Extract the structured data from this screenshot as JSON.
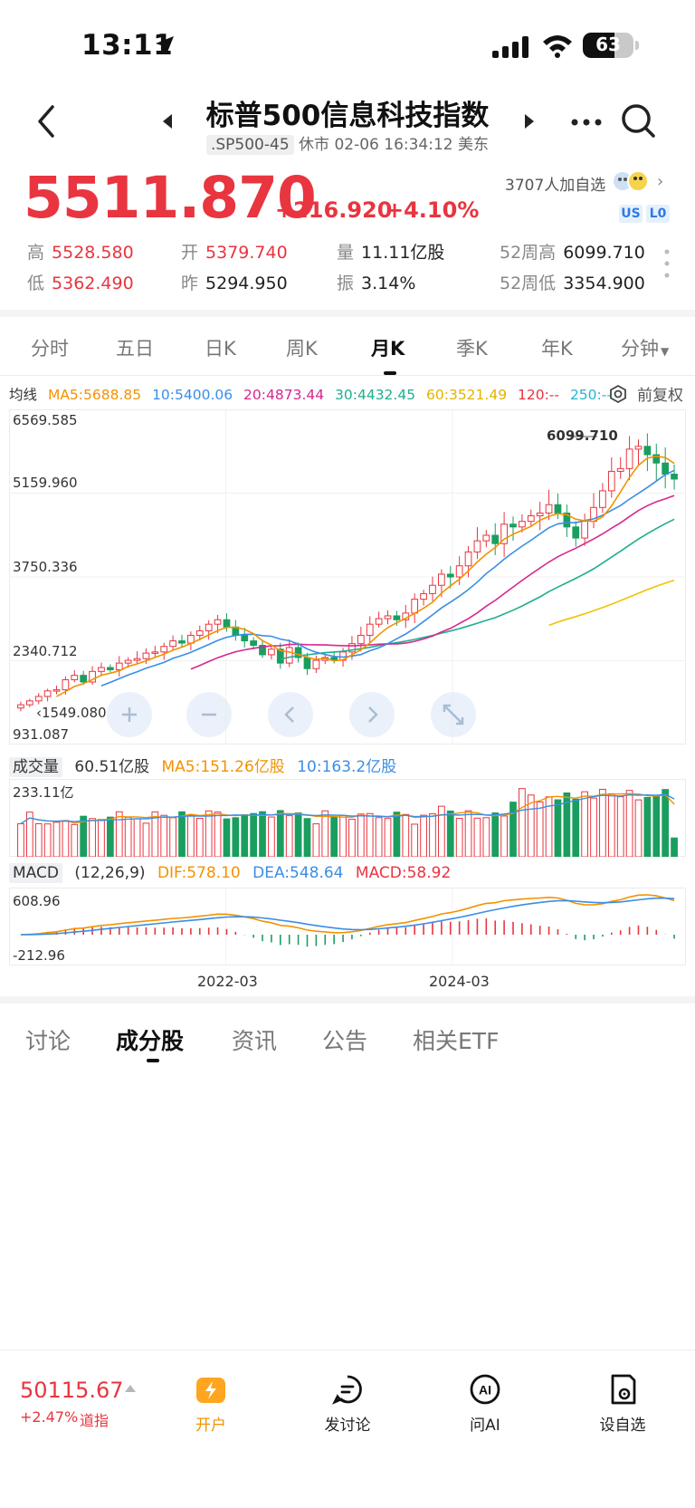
{
  "status_bar": {
    "time": "13:11",
    "battery": "63",
    "battery_level": 0.63
  },
  "header": {
    "title": "标普500信息科技指数",
    "code": ".SP500-45",
    "status": "休市 02-06 16:34:12 美东"
  },
  "quote": {
    "price": "5511.870",
    "change": "+216.920",
    "change_pct": "+4.10%",
    "watchers": "3707人加自选",
    "badge_us": "US",
    "badge_lo": "L0"
  },
  "stats": [
    {
      "label": "高",
      "value": "5528.580",
      "color": "red"
    },
    {
      "label": "开",
      "value": "5379.740",
      "color": "red"
    },
    {
      "label": "量",
      "value": "11.11亿股",
      "color": "dark"
    },
    {
      "label": "52周高",
      "value": "6099.710",
      "color": "dark"
    },
    {
      "label": "低",
      "value": "5362.490",
      "color": "red"
    },
    {
      "label": "昨",
      "value": "5294.950",
      "color": "dark"
    },
    {
      "label": "振",
      "value": "3.14%",
      "color": "dark"
    },
    {
      "label": "52周低",
      "value": "3354.900",
      "color": "dark"
    }
  ],
  "period_tabs": [
    "分时",
    "五日",
    "日K",
    "周K",
    "月K",
    "季K",
    "年K",
    "分钟"
  ],
  "period_active": 4,
  "ma": {
    "label": "均线",
    "ma5": "MA5:5688.85",
    "ma10": "10:5400.06",
    "ma20": "20:4873.44",
    "ma30": "30:4432.45",
    "ma60": "60:3521.49",
    "ma120": "120:--",
    "ma250": "250:--",
    "fq": "前复权"
  },
  "price_axis": [
    "6569.585",
    "5159.960",
    "3750.336",
    "2340.712",
    "931.087"
  ],
  "peak_label": "6099.710",
  "low_label": "1549.080",
  "volume": {
    "label": "成交量",
    "value": "60.51亿股",
    "ma5": "MA5:151.26亿股",
    "ma10": "10:163.2亿股",
    "axis_top": "233.11亿"
  },
  "macd": {
    "label": "MACD",
    "params": "(12,26,9)",
    "dif": "DIF:578.10",
    "dea": "DEA:548.64",
    "macd": "MACD:58.92",
    "axis_top": "608.96",
    "axis_bottom": "-212.96"
  },
  "dates": [
    "2022-03",
    "2024-03"
  ],
  "sub_tabs": [
    "讨论",
    "成分股",
    "资讯",
    "公告",
    "相关ETF"
  ],
  "sub_active": 1,
  "bottom": {
    "ticker_price": "50115.67",
    "ticker_change": "+2.47%",
    "ticker_name": "道指",
    "items": [
      {
        "label": "开户",
        "icon": "lightning-icon"
      },
      {
        "label": "发讨论",
        "icon": "comment-icon"
      },
      {
        "label": "问AI",
        "icon": "ai-icon"
      },
      {
        "label": "设自选",
        "icon": "watchlist-icon"
      }
    ]
  },
  "chart_data": {
    "type": "candlestick",
    "title": "",
    "period": "月K",
    "ylim": [
      931.087,
      6569.585
    ],
    "y_ticks": [
      6569.585,
      5159.96,
      3750.336,
      2340.712,
      931.087
    ],
    "x_ticks": [
      "2022-03",
      "2024-03"
    ],
    "closes_approx": [
      1450,
      1520,
      1600,
      1700,
      1720,
      1900,
      1980,
      1860,
      2050,
      2120,
      2080,
      2200,
      2250,
      2280,
      2380,
      2400,
      2500,
      2600,
      2560,
      2700,
      2780,
      2900,
      2980,
      2850,
      2700,
      2600,
      2520,
      2350,
      2450,
      2200,
      2480,
      2300,
      2100,
      2250,
      2300,
      2250,
      2400,
      2550,
      2700,
      2900,
      3000,
      3050,
      2980,
      3100,
      3350,
      3450,
      3600,
      3800,
      3750,
      3950,
      4200,
      4400,
      4500,
      4350,
      4700,
      4650,
      4750,
      4850,
      4900,
      5050,
      4900,
      4650,
      4450,
      4750,
      5000,
      5300,
      5650,
      5700,
      6050,
      6100,
      5950,
      5800,
      5600,
      5511
    ],
    "ma_lines": [
      "MA5",
      "MA10",
      "MA20",
      "MA30",
      "MA60"
    ],
    "colors": {
      "up": "#e8353f",
      "down": "#1a9e5f",
      "ma5": "#f39200",
      "ma10": "#3a8ee6",
      "ma20": "#d6278f",
      "ma30": "#1fae8f",
      "ma60": "#f0c400"
    }
  }
}
